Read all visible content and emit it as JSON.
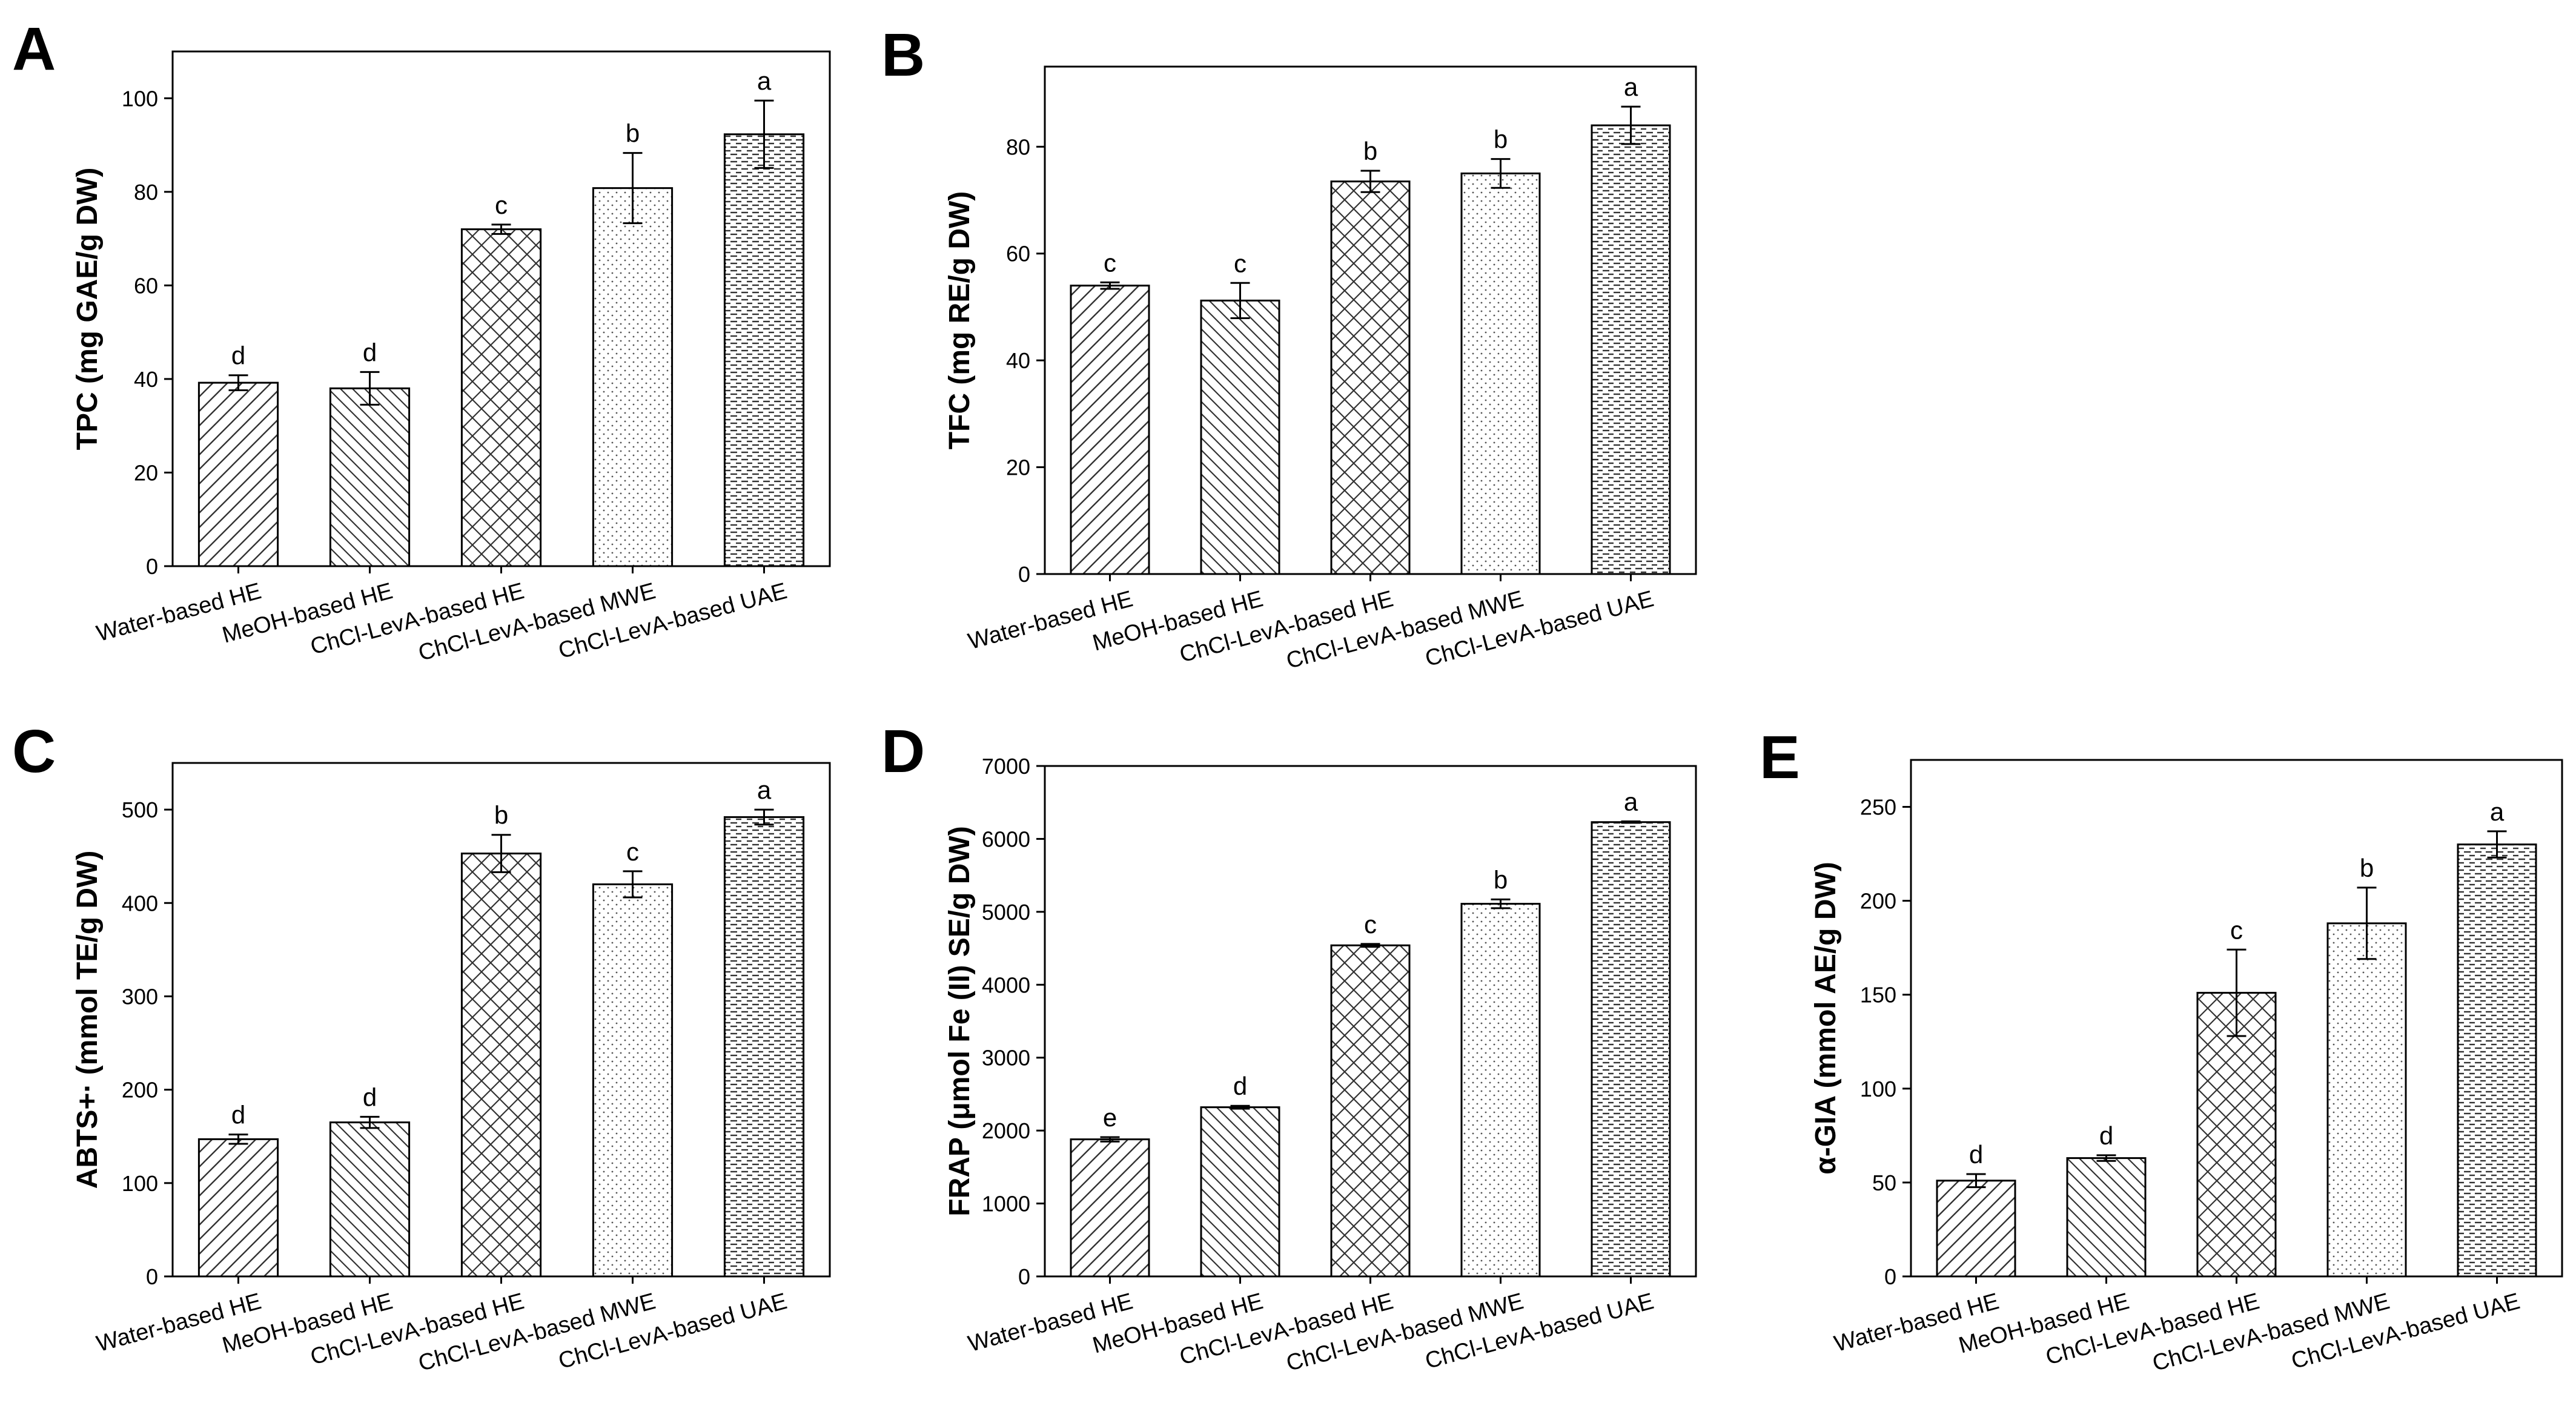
{
  "chart_data": [
    {
      "panel": "A",
      "type": "bar",
      "ylabel": "TPC (mg GAE/g DW)",
      "ylim": [
        0,
        110
      ],
      "yticks": [
        0,
        20,
        40,
        60,
        80,
        100
      ],
      "categories": [
        "Water-based HE",
        "MeOH-based HE",
        "ChCl-LevA-based HE",
        "ChCl-LevA-based MWE",
        "ChCl-LevA-based UAE"
      ],
      "values": [
        39.2,
        38.0,
        72.0,
        80.8,
        92.3
      ],
      "errors": [
        1.6,
        3.5,
        1.0,
        7.5,
        7.2
      ],
      "labels": [
        "d",
        "d",
        "c",
        "b",
        "a"
      ]
    },
    {
      "panel": "B",
      "type": "bar",
      "ylabel": "TFC (mg RE/g DW)",
      "ylim": [
        0,
        95
      ],
      "yticks": [
        0,
        20,
        40,
        60,
        80
      ],
      "categories": [
        "Water-based HE",
        "MeOH-based HE",
        "ChCl-LevA-based HE",
        "ChCl-LevA-based MWE",
        "ChCl-LevA-based UAE"
      ],
      "values": [
        54.0,
        51.2,
        73.5,
        75.0,
        84.0
      ],
      "errors": [
        0.6,
        3.3,
        2.0,
        2.7,
        3.5
      ],
      "labels": [
        "c",
        "c",
        "b",
        "b",
        "a"
      ]
    },
    {
      "panel": "C",
      "type": "bar",
      "ylabel": "ABTS+· (mmol TE/g DW)",
      "ylim": [
        0,
        550
      ],
      "yticks": [
        0,
        100,
        200,
        300,
        400,
        500
      ],
      "categories": [
        "Water-based HE",
        "MeOH-based HE",
        "ChCl-LevA-based HE",
        "ChCl-LevA-based MWE",
        "ChCl-LevA-based UAE"
      ],
      "values": [
        147,
        165,
        453,
        420,
        492
      ],
      "errors": [
        5,
        6,
        20,
        14,
        8
      ],
      "labels": [
        "d",
        "d",
        "b",
        "c",
        "a"
      ]
    },
    {
      "panel": "D",
      "type": "bar",
      "ylabel": "FRAP (μmol Fe (II) SE/g DW)",
      "ylim": [
        0,
        7000
      ],
      "yticks": [
        0,
        1000,
        2000,
        3000,
        4000,
        5000,
        6000,
        7000
      ],
      "categories": [
        "Water-based HE",
        "MeOH-based HE",
        "ChCl-LevA-based HE",
        "ChCl-LevA-based MWE",
        "ChCl-LevA-based UAE"
      ],
      "values": [
        1880,
        2320,
        4540,
        5110,
        6230
      ],
      "errors": [
        30,
        20,
        20,
        60,
        10
      ],
      "labels": [
        "e",
        "d",
        "c",
        "b",
        "a"
      ]
    },
    {
      "panel": "E",
      "type": "bar",
      "ylabel": "α-GIA (mmol AE/g DW)",
      "ylim": [
        0,
        275
      ],
      "yticks": [
        0,
        50,
        100,
        150,
        200,
        250
      ],
      "categories": [
        "Water-based HE",
        "MeOH-based HE",
        "ChCl-LevA-based HE",
        "ChCl-LevA-based MWE",
        "ChCl-LevA-based UAE"
      ],
      "values": [
        51,
        63,
        151,
        188,
        230
      ],
      "errors": [
        3.5,
        1.5,
        23,
        19,
        7
      ],
      "labels": [
        "d",
        "d",
        "c",
        "b",
        "a"
      ]
    }
  ]
}
